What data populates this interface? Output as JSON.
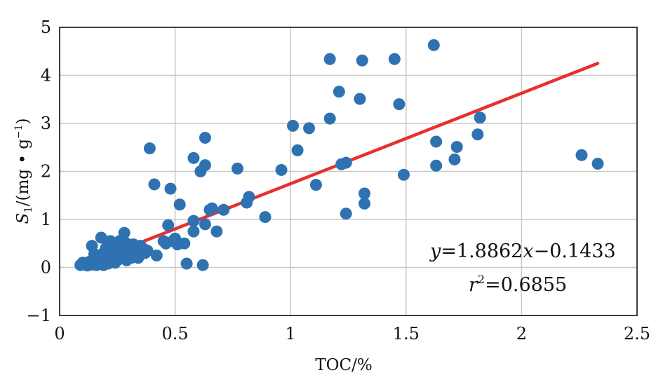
{
  "chart_data": {
    "type": "scatter",
    "xlabel": "TOC/%",
    "ylabel": {
      "symbol": "S",
      "subscript": "1",
      "unit_open": "/(mg • g",
      "unit_sup": "−1",
      "unit_close": ")"
    },
    "xlim": [
      0,
      2.5
    ],
    "ylim": [
      -1,
      5
    ],
    "x_ticks": [
      0,
      0.5,
      1,
      1.5,
      2,
      2.5
    ],
    "x_tick_labels": [
      "0",
      "0.5",
      "1",
      "1.5",
      "2",
      "2.5"
    ],
    "y_ticks": [
      -1,
      0,
      1,
      2,
      3,
      4,
      5
    ],
    "y_tick_labels": [
      "−1",
      "0",
      "1",
      "2",
      "3",
      "4",
      "5"
    ],
    "grid": true,
    "colors": {
      "points": "#2f72b2",
      "fit_line": "#e8302f",
      "grid": "#c8c8c8"
    },
    "series": [
      {
        "kind": "points",
        "points": [
          [
            0.09,
            0.05
          ],
          [
            0.1,
            0.1
          ],
          [
            0.11,
            0.07
          ],
          [
            0.12,
            0.04
          ],
          [
            0.13,
            0.12
          ],
          [
            0.14,
            0.06
          ],
          [
            0.14,
            0.45
          ],
          [
            0.15,
            0.1
          ],
          [
            0.15,
            0.28
          ],
          [
            0.16,
            0.05
          ],
          [
            0.16,
            0.18
          ],
          [
            0.17,
            0.08
          ],
          [
            0.17,
            0.22
          ],
          [
            0.18,
            0.62
          ],
          [
            0.18,
            0.12
          ],
          [
            0.19,
            0.05
          ],
          [
            0.19,
            0.3
          ],
          [
            0.2,
            0.15
          ],
          [
            0.2,
            0.4
          ],
          [
            0.21,
            0.08
          ],
          [
            0.21,
            0.22
          ],
          [
            0.22,
            0.55
          ],
          [
            0.22,
            0.12
          ],
          [
            0.23,
            0.3
          ],
          [
            0.23,
            0.18
          ],
          [
            0.24,
            0.1
          ],
          [
            0.24,
            0.45
          ],
          [
            0.25,
            0.25
          ],
          [
            0.25,
            0.15
          ],
          [
            0.26,
            0.35
          ],
          [
            0.26,
            0.55
          ],
          [
            0.27,
            0.2
          ],
          [
            0.27,
            0.4
          ],
          [
            0.28,
            0.72
          ],
          [
            0.28,
            0.3
          ],
          [
            0.29,
            0.15
          ],
          [
            0.29,
            0.5
          ],
          [
            0.3,
            0.25
          ],
          [
            0.3,
            0.4
          ],
          [
            0.31,
            0.35
          ],
          [
            0.31,
            0.2
          ],
          [
            0.32,
            0.48
          ],
          [
            0.32,
            0.3
          ],
          [
            0.33,
            0.25
          ],
          [
            0.33,
            0.42
          ],
          [
            0.34,
            0.2
          ],
          [
            0.34,
            0.35
          ],
          [
            0.35,
            0.45
          ],
          [
            0.35,
            0.28
          ],
          [
            0.36,
            0.4
          ],
          [
            0.37,
            0.3
          ],
          [
            0.38,
            0.35
          ],
          [
            0.39,
            2.48
          ],
          [
            0.41,
            1.73
          ],
          [
            0.42,
            0.25
          ],
          [
            0.45,
            0.55
          ],
          [
            0.46,
            0.5
          ],
          [
            0.47,
            0.88
          ],
          [
            0.48,
            1.64
          ],
          [
            0.49,
            0.55
          ],
          [
            0.5,
            0.6
          ],
          [
            0.51,
            0.48
          ],
          [
            0.52,
            1.31
          ],
          [
            0.54,
            0.5
          ],
          [
            0.55,
            0.08
          ],
          [
            0.58,
            2.28
          ],
          [
            0.58,
            0.97
          ],
          [
            0.58,
            0.75
          ],
          [
            0.61,
            2.0
          ],
          [
            0.62,
            0.05
          ],
          [
            0.63,
            2.7
          ],
          [
            0.63,
            2.13
          ],
          [
            0.63,
            0.9
          ],
          [
            0.65,
            1.2
          ],
          [
            0.66,
            1.23
          ],
          [
            0.68,
            0.75
          ],
          [
            0.71,
            1.2
          ],
          [
            0.77,
            2.06
          ],
          [
            0.81,
            1.35
          ],
          [
            0.82,
            1.47
          ],
          [
            0.89,
            1.05
          ],
          [
            0.96,
            2.03
          ],
          [
            1.01,
            2.95
          ],
          [
            1.03,
            2.44
          ],
          [
            1.08,
            2.9
          ],
          [
            1.11,
            1.72
          ],
          [
            1.17,
            4.34
          ],
          [
            1.17,
            3.1
          ],
          [
            1.21,
            3.66
          ],
          [
            1.22,
            2.15
          ],
          [
            1.24,
            2.18
          ],
          [
            1.24,
            1.12
          ],
          [
            1.3,
            3.51
          ],
          [
            1.31,
            4.31
          ],
          [
            1.32,
            1.54
          ],
          [
            1.32,
            1.33
          ],
          [
            1.45,
            4.34
          ],
          [
            1.47,
            3.4
          ],
          [
            1.49,
            1.93
          ],
          [
            1.62,
            4.63
          ],
          [
            1.63,
            2.62
          ],
          [
            1.63,
            2.12
          ],
          [
            1.71,
            2.25
          ],
          [
            1.72,
            2.51
          ],
          [
            1.81,
            2.77
          ],
          [
            1.82,
            3.12
          ],
          [
            2.26,
            2.34
          ],
          [
            2.33,
            2.16
          ]
        ]
      },
      {
        "kind": "fit_line",
        "x": [
          0.09,
          2.33
        ],
        "y": [
          0.03,
          4.25
        ]
      }
    ],
    "annotations": {
      "equation": {
        "lhs": "y",
        "mid": "=1.8862",
        "var": "x",
        "rhs": "−0.1433"
      },
      "r2": {
        "symbol": "r",
        "sup": "2",
        "value": "=0.6855"
      }
    }
  }
}
